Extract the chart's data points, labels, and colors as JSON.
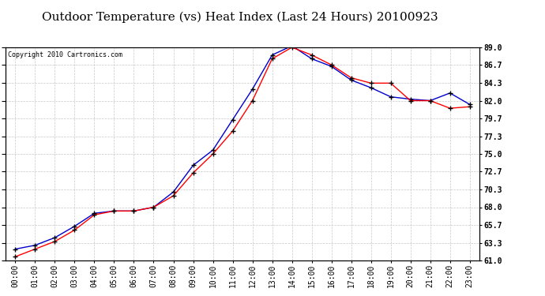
{
  "title": "Outdoor Temperature (vs) Heat Index (Last 24 Hours) 20100923",
  "copyright": "Copyright 2010 Cartronics.com",
  "x_labels": [
    "00:00",
    "01:00",
    "02:00",
    "03:00",
    "04:00",
    "05:00",
    "06:00",
    "07:00",
    "08:00",
    "09:00",
    "10:00",
    "11:00",
    "12:00",
    "13:00",
    "14:00",
    "15:00",
    "16:00",
    "17:00",
    "18:00",
    "19:00",
    "20:00",
    "21:00",
    "22:00",
    "23:00"
  ],
  "temp": [
    61.5,
    62.5,
    63.5,
    65.0,
    67.0,
    67.5,
    67.5,
    68.0,
    69.5,
    72.5,
    75.0,
    78.0,
    82.0,
    87.5,
    89.0,
    88.0,
    86.7,
    85.0,
    84.3,
    84.3,
    82.0,
    82.0,
    81.0,
    81.2
  ],
  "heat_index": [
    62.5,
    63.0,
    64.0,
    65.5,
    67.2,
    67.5,
    67.5,
    68.0,
    70.0,
    73.5,
    75.5,
    79.5,
    83.5,
    88.0,
    89.2,
    87.5,
    86.5,
    84.7,
    83.7,
    82.5,
    82.2,
    82.0,
    83.0,
    81.5
  ],
  "temp_color": "#FF0000",
  "heat_index_color": "#0000CC",
  "ylim_min": 61.0,
  "ylim_max": 89.0,
  "y_ticks": [
    61.0,
    63.3,
    65.7,
    68.0,
    70.3,
    72.7,
    75.0,
    77.3,
    79.7,
    82.0,
    84.3,
    86.7,
    89.0
  ],
  "bg_color": "#FFFFFF",
  "grid_color": "#C8C8C8",
  "title_fontsize": 11,
  "tick_fontsize": 7,
  "copyright_fontsize": 6
}
